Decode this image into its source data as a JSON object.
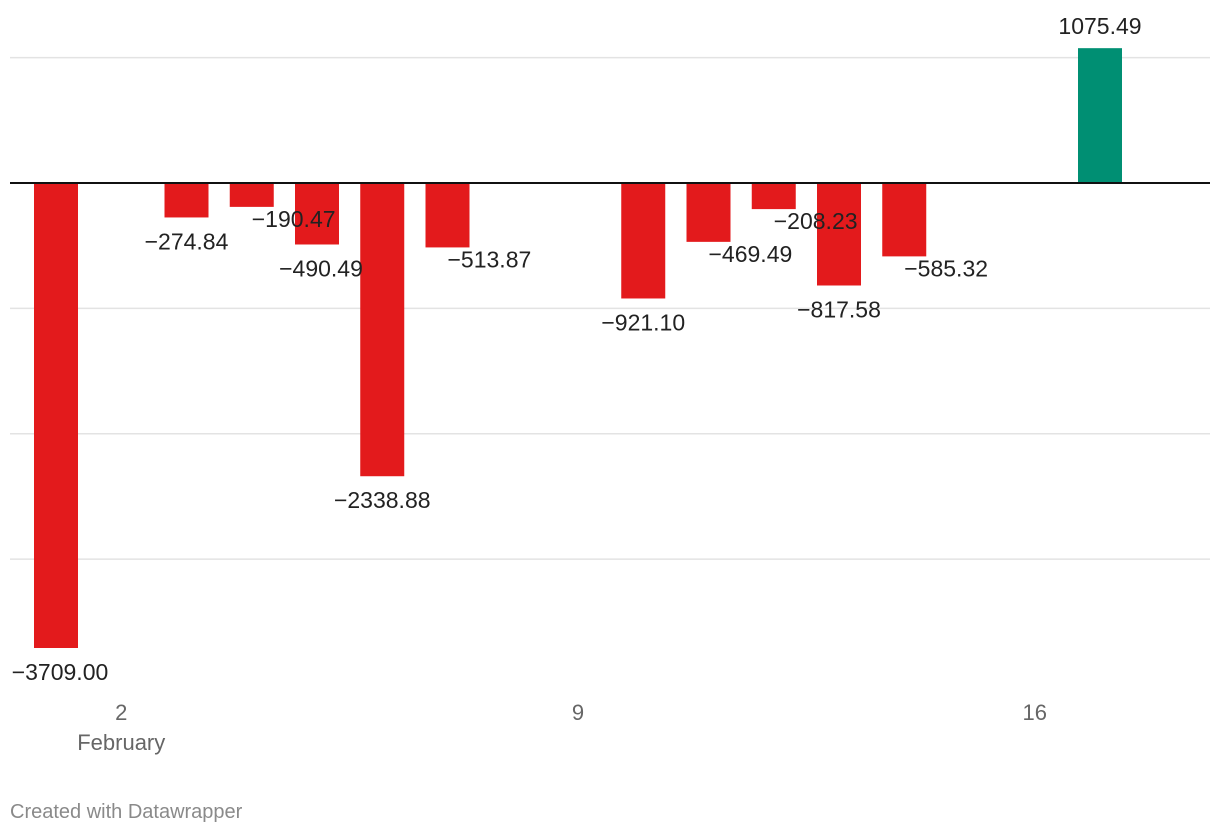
{
  "chart_data": {
    "type": "bar",
    "title": "",
    "xlabel": "",
    "ylabel": "",
    "ylim": [
      -4000,
      1000
    ],
    "grid_values": [
      1000,
      -1000,
      -2000,
      -3000
    ],
    "colors": {
      "positive": "#008f73",
      "negative": "#e31a1c"
    },
    "bars": [
      {
        "day": 1,
        "value": -3709.0,
        "label": "−3709.00"
      },
      {
        "day": 3,
        "value": -274.84,
        "label": "−274.84"
      },
      {
        "day": 4,
        "value": -190.47,
        "label": "−190.47"
      },
      {
        "day": 5,
        "value": -490.49,
        "label": "−490.49"
      },
      {
        "day": 6,
        "value": -2338.88,
        "label": "−2338.88"
      },
      {
        "day": 7,
        "value": -513.87,
        "label": "−513.87"
      },
      {
        "day": 10,
        "value": -921.1,
        "label": "−921.10"
      },
      {
        "day": 11,
        "value": -469.49,
        "label": "−469.49"
      },
      {
        "day": 12,
        "value": -208.23,
        "label": "−208.23"
      },
      {
        "day": 13,
        "value": -817.58,
        "label": "−817.58"
      },
      {
        "day": 14,
        "value": -585.32,
        "label": "−585.32"
      },
      {
        "day": 17,
        "value": 1075.49,
        "label": "1075.49"
      }
    ],
    "x_ticks": [
      {
        "day": 2,
        "label": "2",
        "sublabel": "February"
      },
      {
        "day": 9,
        "label": "9",
        "sublabel": ""
      },
      {
        "day": 16,
        "label": "16",
        "sublabel": ""
      }
    ]
  },
  "footer": {
    "credit": "Created with Datawrapper"
  }
}
